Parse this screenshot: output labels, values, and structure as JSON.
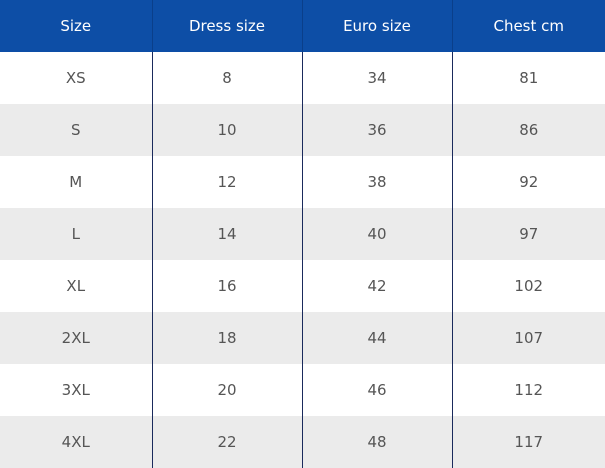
{
  "table": {
    "header": [
      "Size",
      "Dress size",
      "Euro size",
      "Chest cm"
    ],
    "rows": [
      [
        "XS",
        "8",
        "34",
        "81"
      ],
      [
        "S",
        "10",
        "36",
        "86"
      ],
      [
        "M",
        "12",
        "38",
        "92"
      ],
      [
        "L",
        "14",
        "40",
        "97"
      ],
      [
        "XL",
        "16",
        "42",
        "102"
      ],
      [
        "2XL",
        "18",
        "44",
        "107"
      ],
      [
        "3XL",
        "20",
        "46",
        "112"
      ],
      [
        "4XL",
        "22",
        "48",
        "117"
      ]
    ]
  }
}
